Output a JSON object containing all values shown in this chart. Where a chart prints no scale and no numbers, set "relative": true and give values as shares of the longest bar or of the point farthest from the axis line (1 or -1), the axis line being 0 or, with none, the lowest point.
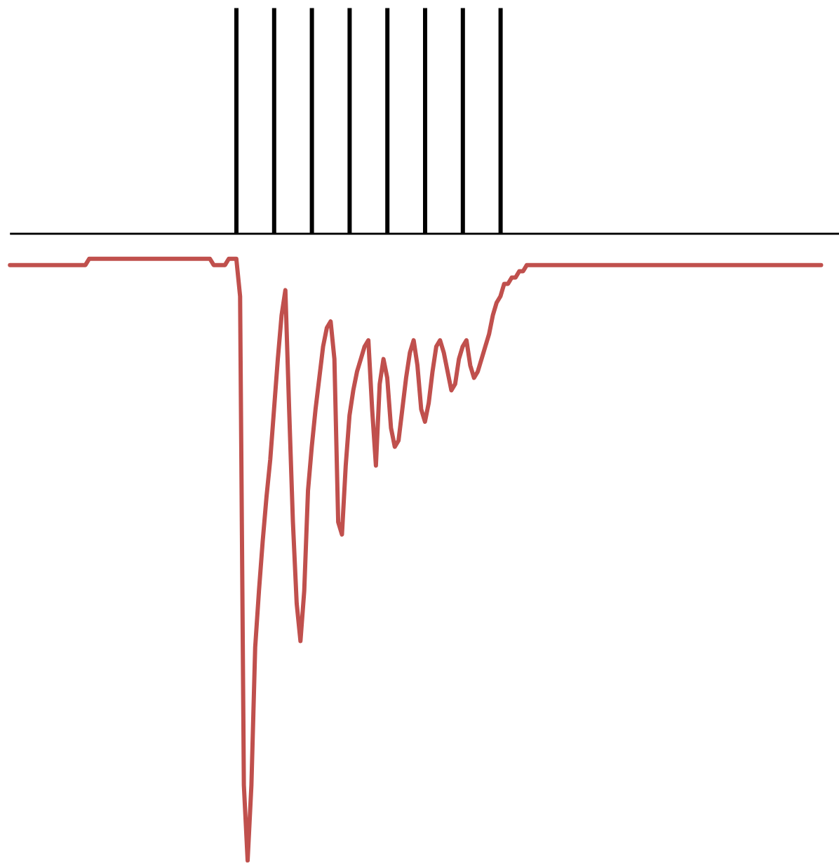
{
  "chart_data": [
    {
      "type": "bar",
      "relative": true,
      "categories": [
        null,
        null,
        null,
        null,
        null,
        null,
        null,
        null
      ],
      "values": [
        1,
        1,
        1,
        1,
        1,
        1,
        1,
        1
      ],
      "color": "#000000"
    },
    {
      "type": "line",
      "relative": true,
      "categories": [
        null,
        null,
        null,
        null,
        null,
        null,
        null,
        null,
        null,
        null,
        null,
        null,
        null,
        null,
        null,
        null,
        null,
        null,
        null,
        null,
        null,
        null,
        null,
        null,
        null,
        null,
        null,
        null,
        null,
        null,
        null,
        null,
        null,
        null,
        null,
        null,
        null,
        null,
        null,
        null,
        null,
        null,
        null,
        null,
        null,
        null,
        null,
        null,
        null,
        null,
        null,
        null,
        null,
        null,
        null,
        null,
        null,
        null,
        null,
        null,
        null,
        null,
        null,
        null,
        null,
        null,
        null,
        null,
        null,
        null,
        null,
        null,
        null,
        null,
        null,
        null,
        null,
        null,
        null,
        null,
        null,
        null,
        null,
        null,
        null,
        null,
        null,
        null,
        null,
        null,
        null,
        null,
        null,
        null,
        null,
        null,
        null,
        null,
        null,
        null,
        null,
        null,
        null,
        null,
        null,
        null,
        null,
        null,
        null,
        null,
        null,
        null,
        null,
        null,
        null,
        null,
        null,
        null,
        null,
        null,
        null,
        null,
        null,
        null,
        null,
        null,
        null,
        null,
        null,
        null,
        null,
        null,
        null,
        null,
        null,
        null,
        null,
        null,
        null,
        null,
        null,
        null,
        null,
        null,
        null,
        null,
        null,
        null,
        null,
        null,
        null,
        null,
        null,
        null,
        null,
        null,
        null,
        null,
        null,
        null,
        null,
        null,
        null,
        null,
        null,
        null,
        null,
        null,
        null,
        null,
        null,
        null,
        null,
        null,
        null,
        null,
        null,
        null,
        null,
        null,
        null,
        null,
        null,
        null,
        null,
        null,
        null,
        null,
        null,
        null,
        null,
        null,
        null,
        null,
        null,
        null,
        null,
        null,
        null,
        null,
        null,
        null,
        null,
        null,
        null,
        null,
        null,
        null,
        null,
        null,
        null,
        null,
        null,
        null,
        null,
        null,
        null,
        null,
        null,
        null
      ],
      "color": "#c0504d",
      "values": [
        -0.05,
        -0.05,
        -0.05,
        -0.05,
        -0.05,
        -0.05,
        -0.05,
        -0.05,
        -0.05,
        -0.05,
        -0.05,
        -0.05,
        -0.05,
        -0.05,
        -0.05,
        -0.05,
        -0.05,
        -0.05,
        -0.05,
        -0.05,
        -0.05,
        -0.04,
        -0.04,
        -0.04,
        -0.04,
        -0.04,
        -0.04,
        -0.04,
        -0.04,
        -0.04,
        -0.04,
        -0.04,
        -0.04,
        -0.04,
        -0.04,
        -0.04,
        -0.04,
        -0.04,
        -0.04,
        -0.04,
        -0.04,
        -0.04,
        -0.04,
        -0.04,
        -0.04,
        -0.04,
        -0.04,
        -0.04,
        -0.04,
        -0.04,
        -0.04,
        -0.04,
        -0.04,
        -0.04,
        -0.05,
        -0.05,
        -0.05,
        -0.05,
        -0.04,
        -0.04,
        -0.04,
        -0.1,
        -0.88,
        -1.0,
        -0.88,
        -0.66,
        -0.57,
        -0.49,
        -0.42,
        -0.36,
        -0.28,
        -0.2,
        -0.13,
        -0.09,
        -0.28,
        -0.46,
        -0.59,
        -0.65,
        -0.57,
        -0.41,
        -0.34,
        -0.28,
        -0.23,
        -0.18,
        -0.15,
        -0.14,
        -0.2,
        -0.46,
        -0.48,
        -0.37,
        -0.29,
        -0.25,
        -0.22,
        -0.2,
        -0.18,
        -0.17,
        -0.28,
        -0.37,
        -0.24,
        -0.2,
        -0.23,
        -0.31,
        -0.34,
        -0.33,
        -0.28,
        -0.23,
        -0.19,
        -0.17,
        -0.21,
        -0.28,
        -0.3,
        -0.27,
        -0.22,
        -0.18,
        -0.17,
        -0.19,
        -0.22,
        -0.25,
        -0.24,
        -0.2,
        -0.18,
        -0.17,
        -0.21,
        -0.23,
        -0.22,
        -0.2,
        -0.18,
        -0.16,
        -0.13,
        -0.11,
        -0.1,
        -0.08,
        -0.08,
        -0.07,
        -0.07,
        -0.06,
        -0.06,
        -0.05,
        -0.05,
        -0.05,
        -0.05,
        -0.05,
        -0.05,
        -0.05,
        -0.05,
        -0.05,
        -0.05,
        -0.05,
        -0.05,
        -0.05,
        -0.05,
        -0.05,
        -0.05,
        -0.05,
        -0.05,
        -0.05,
        -0.05,
        -0.05,
        -0.05,
        -0.05,
        -0.05,
        -0.05,
        -0.05,
        -0.05,
        -0.05,
        -0.05,
        -0.05,
        -0.05,
        -0.05,
        -0.05,
        -0.05,
        -0.05,
        -0.05,
        -0.05,
        -0.05,
        -0.05,
        -0.05,
        -0.05,
        -0.05,
        -0.05,
        -0.05,
        -0.05,
        -0.05,
        -0.05,
        -0.05,
        -0.05,
        -0.05,
        -0.05,
        -0.05,
        -0.05,
        -0.05,
        -0.05,
        -0.05,
        -0.05,
        -0.05,
        -0.05,
        -0.05,
        -0.05,
        -0.05,
        -0.05,
        -0.05,
        -0.05,
        -0.05,
        -0.05,
        -0.05,
        -0.05,
        -0.05,
        -0.05,
        -0.05,
        -0.05,
        -0.05,
        -0.05,
        -0.05,
        -0.05,
        -0.05,
        -0.05,
        null,
        null,
        null,
        null
      ]
    }
  ]
}
